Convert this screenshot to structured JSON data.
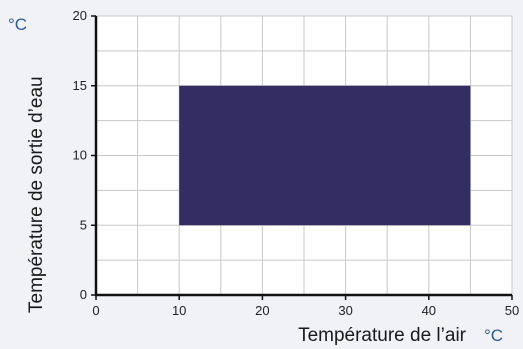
{
  "chart_data": {
    "type": "area",
    "x_range": [
      0,
      50
    ],
    "y_range": [
      0,
      20
    ],
    "x_ticks": [
      0,
      10,
      20,
      30,
      40,
      50
    ],
    "y_ticks": [
      0,
      5,
      10,
      15,
      20
    ],
    "x_minor_step": 5,
    "y_minor_step": 2.5,
    "grid": true,
    "xlabel": "Température de l’air",
    "ylabel": "Température de sortie d’eau",
    "x_unit": "°C",
    "y_unit": "°C",
    "regions": [
      {
        "x": [
          10,
          45
        ],
        "y": [
          5,
          15
        ],
        "color": "#332d63"
      }
    ]
  },
  "colors": {
    "region": "#332d63",
    "unit": "#2c5d93",
    "axis": "#111111",
    "grid": "#c9c9c9",
    "plot_background": "#ffffff"
  }
}
